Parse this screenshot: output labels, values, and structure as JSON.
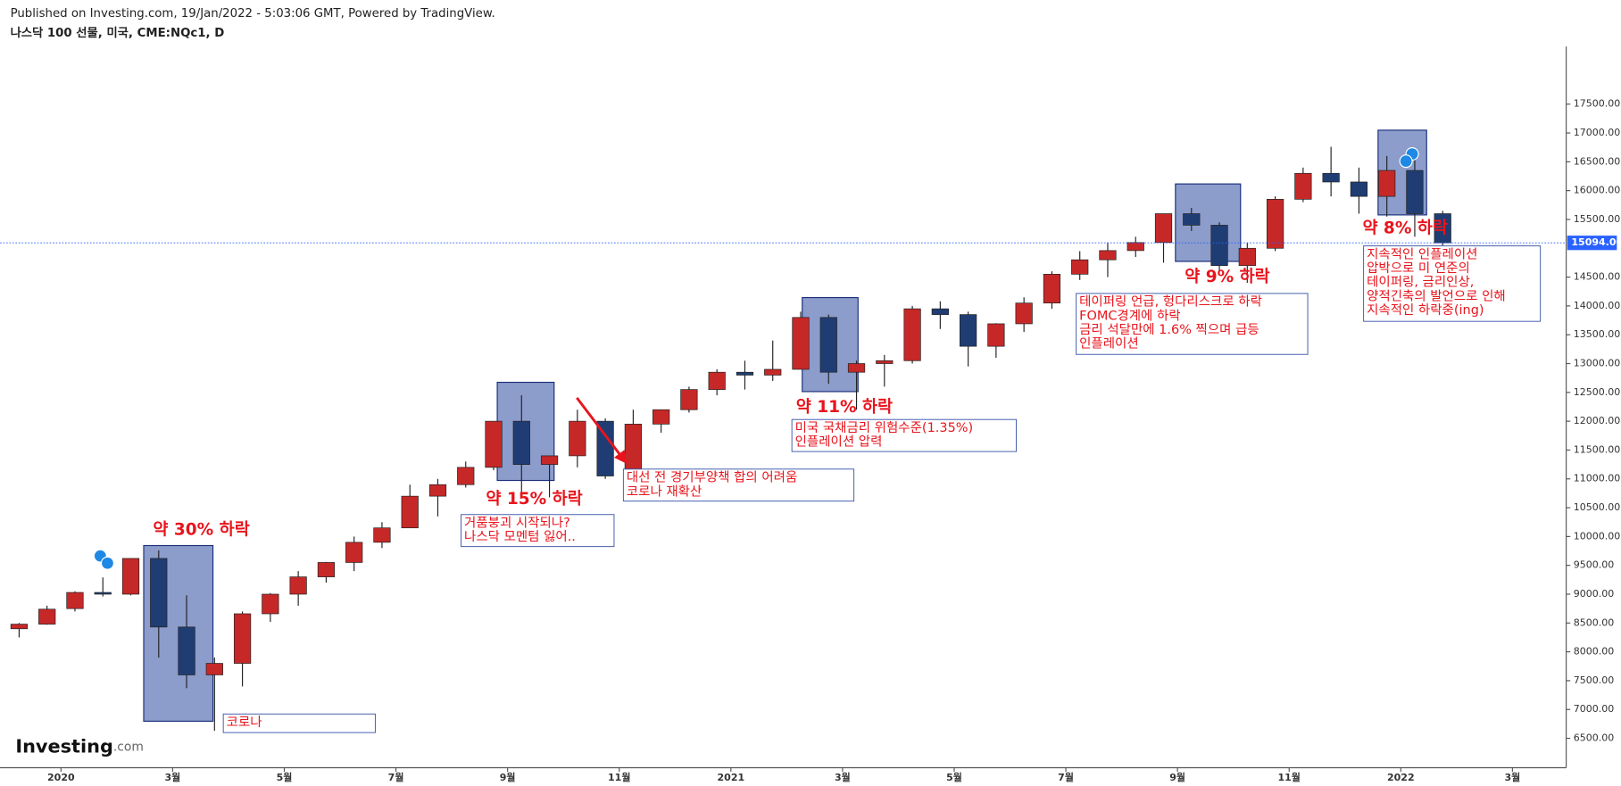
{
  "header": {
    "published": "Published on Investing.com, 19/Jan/2022 - 5:03:06 GMT, Powered by TradingView."
  },
  "logo": {
    "brand": "Investing",
    "suffix": ".com"
  },
  "chart_data": {
    "type": "candlestick",
    "title": "나스닥 100 선물, 미국, CME:NQc1, D",
    "up_color": "#c62828",
    "down_color": "#1f3d73",
    "categories": [
      null,
      null,
      "2020",
      null,
      null,
      null,
      "3월",
      null,
      null,
      null,
      "5월",
      null,
      null,
      null,
      "7월",
      null,
      null,
      null,
      "9월",
      null,
      null,
      null,
      "11월",
      null,
      null,
      null,
      "2021",
      null,
      null,
      null,
      "3월",
      null,
      null,
      null,
      "5월",
      null,
      null,
      null,
      "7월",
      null,
      null,
      null,
      "9월",
      null,
      null,
      null,
      "11월",
      null,
      null,
      null,
      "2022",
      null,
      null,
      null,
      "3월",
      null
    ],
    "open": [
      8400,
      8480,
      8750,
      9030,
      9000,
      9620,
      8430,
      7600,
      7800,
      8660,
      9000,
      9300,
      9550,
      9900,
      10150,
      10700,
      10900,
      11200,
      12000,
      11250,
      11400,
      12000,
      11050,
      11950,
      12200,
      12550,
      12850,
      12800,
      12900,
      13800,
      12850,
      13000,
      13050,
      13950,
      13850,
      13300,
      13690,
      14050,
      14550,
      14800,
      14960,
      15100,
      15600,
      15400,
      14700,
      15000,
      15850,
      16300,
      16150,
      15900,
      16350,
      15600,
      null,
      null,
      null,
      null
    ],
    "high": [
      8500,
      8800,
      9050,
      9290,
      9620,
      9760,
      8980,
      7900,
      8700,
      9020,
      9400,
      9560,
      10000,
      10250,
      10900,
      11000,
      11300,
      12000,
      12450,
      11350,
      12200,
      12050,
      12200,
      12200,
      12600,
      12900,
      13050,
      13400,
      13900,
      13850,
      13050,
      13150,
      14000,
      14080,
      13900,
      13700,
      14150,
      14600,
      14950,
      15100,
      15200,
      15600,
      15700,
      15450,
      15100,
      15900,
      16400,
      16760,
      16400,
      16600,
      16650,
      15650,
      null,
      null,
      null,
      null
    ],
    "low": [
      8250,
      8470,
      8700,
      8960,
      8980,
      7900,
      7370,
      6630,
      7400,
      8520,
      8800,
      9200,
      9400,
      9800,
      10150,
      10350,
      10850,
      11150,
      10700,
      10680,
      11200,
      11000,
      11000,
      11800,
      12150,
      12450,
      12550,
      12700,
      12900,
      12650,
      12200,
      12600,
      13000,
      13600,
      12950,
      13100,
      13550,
      13950,
      14450,
      14500,
      14850,
      14750,
      15300,
      14600,
      14400,
      14950,
      15800,
      15900,
      15600,
      15550,
      15200,
      15050,
      null,
      null,
      null,
      null
    ],
    "close": [
      8480,
      8740,
      9030,
      9000,
      9620,
      8430,
      7600,
      7800,
      8660,
      9000,
      9300,
      9550,
      9900,
      10150,
      10700,
      10900,
      11200,
      12000,
      11250,
      11400,
      12000,
      11050,
      11950,
      12200,
      12550,
      12850,
      12800,
      12900,
      13800,
      12850,
      13000,
      13050,
      13950,
      13850,
      13300,
      13690,
      14050,
      14550,
      14800,
      14960,
      15100,
      15600,
      15400,
      14700,
      15000,
      15850,
      16300,
      16150,
      15900,
      16350,
      15600,
      15094,
      null,
      null,
      null,
      null
    ],
    "ylim": [
      5990,
      18500
    ],
    "yticks": [
      {
        "value": 6500,
        "label": "6500.00"
      },
      {
        "value": 7000,
        "label": "7000.00"
      },
      {
        "value": 7500,
        "label": "7500.00"
      },
      {
        "value": 8000,
        "label": "8000.00"
      },
      {
        "value": 8500,
        "label": "8500.00"
      },
      {
        "value": 9000,
        "label": "9000.00"
      },
      {
        "value": 9500,
        "label": "9500.00"
      },
      {
        "value": 10000,
        "label": "10000.00"
      },
      {
        "value": 10500,
        "label": "10500.00"
      },
      {
        "value": 11000,
        "label": "11000.00"
      },
      {
        "value": 11500,
        "label": "11500.00"
      },
      {
        "value": 12000,
        "label": "12000.00"
      },
      {
        "value": 12500,
        "label": "12500.00"
      },
      {
        "value": 13000,
        "label": "13000.00"
      },
      {
        "value": 13500,
        "label": "13500.00"
      },
      {
        "value": 14000,
        "label": "14000.00"
      },
      {
        "value": 14500,
        "label": "14500.00"
      },
      {
        "value": 15500,
        "label": "15500.00"
      },
      {
        "value": 16000,
        "label": "16000.00"
      },
      {
        "value": 16500,
        "label": "16500.00"
      },
      {
        "value": 17000,
        "label": "17000.00"
      },
      {
        "value": 17500,
        "label": "17500.00"
      }
    ],
    "last_price": {
      "value": 15094,
      "label": "15094.00"
    },
    "annotations": [
      {
        "text": "약 30% 하락"
      },
      {
        "text": "약 15% 하락"
      },
      {
        "text": "약 11% 하락"
      },
      {
        "text": "약 9% 하락"
      },
      {
        "text": "약 8% 하락"
      }
    ],
    "notes": [
      {
        "lines": [
          "코로나"
        ]
      },
      {
        "lines": [
          "거품붕괴 시작되나?",
          "나스닥 모멘텀 잃어.."
        ]
      },
      {
        "lines": [
          "대선 전 경기부양책 합의 어려움",
          "코로나 재확산"
        ]
      },
      {
        "lines": [
          "미국 국채금리 위험수준(1.35%)",
          "인플레이션 압력"
        ]
      },
      {
        "lines": [
          "테이퍼링 언급, 헝다리스크로 하락",
          "FOMC경계에 하락",
          "금리 석달만에 1.6% 찍으며 급등",
          "인플레이션"
        ]
      },
      {
        "lines": [
          "지속적인 인플레이션",
          "압박으로 미 연준의",
          "테이퍼링, 금리인상,",
          "양적긴축의 발언으로 인해",
          "지속적인 하락중(ing)"
        ]
      }
    ]
  }
}
